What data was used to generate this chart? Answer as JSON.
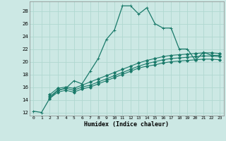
{
  "xlabel": "Humidex (Indice chaleur)",
  "bg_color": "#cce8e4",
  "grid_color": "#b0d8d0",
  "line_color": "#1a7a6a",
  "xlim": [
    -0.5,
    23.5
  ],
  "ylim": [
    11.5,
    29.5
  ],
  "xticks": [
    0,
    1,
    2,
    3,
    4,
    5,
    6,
    7,
    8,
    9,
    10,
    11,
    12,
    13,
    14,
    15,
    16,
    17,
    18,
    19,
    20,
    21,
    22,
    23
  ],
  "yticks": [
    12,
    14,
    16,
    18,
    20,
    22,
    24,
    26,
    28
  ],
  "series": [
    {
      "x": [
        0,
        1,
        2,
        3,
        4,
        5,
        6,
        7,
        8,
        9,
        10,
        11,
        12,
        13,
        14,
        15,
        16,
        17,
        18,
        19,
        20,
        21,
        22,
        23
      ],
      "y": [
        12.2,
        12.0,
        14.2,
        15.5,
        15.8,
        17.0,
        16.5,
        18.5,
        20.5,
        23.5,
        25.0,
        28.8,
        28.8,
        27.5,
        28.5,
        26.0,
        25.3,
        25.3,
        22.0,
        22.0,
        20.2,
        21.5,
        21.0,
        21.0
      ],
      "marker": "+",
      "ms": 3.5,
      "lw": 0.9
    },
    {
      "x": [
        2,
        3,
        4,
        5,
        6,
        7,
        8,
        9,
        10,
        11,
        12,
        13,
        14,
        15,
        16,
        17,
        18,
        19,
        20,
        21,
        22,
        23
      ],
      "y": [
        14.8,
        15.8,
        16.0,
        15.8,
        16.3,
        16.8,
        17.3,
        17.8,
        18.3,
        18.8,
        19.3,
        19.8,
        20.2,
        20.5,
        20.8,
        21.0,
        21.1,
        21.2,
        21.3,
        21.4,
        21.4,
        21.3
      ],
      "marker": "D",
      "ms": 2.0,
      "lw": 0.8
    },
    {
      "x": [
        2,
        3,
        4,
        5,
        6,
        7,
        8,
        9,
        10,
        11,
        12,
        13,
        14,
        15,
        16,
        17,
        18,
        19,
        20,
        21,
        22,
        23
      ],
      "y": [
        14.5,
        15.5,
        15.8,
        15.5,
        16.0,
        16.3,
        16.8,
        17.3,
        17.8,
        18.3,
        18.8,
        19.3,
        19.7,
        20.0,
        20.3,
        20.5,
        20.6,
        20.7,
        20.8,
        20.9,
        20.9,
        20.8
      ],
      "marker": "D",
      "ms": 2.0,
      "lw": 0.8
    },
    {
      "x": [
        2,
        3,
        4,
        5,
        6,
        7,
        8,
        9,
        10,
        11,
        12,
        13,
        14,
        15,
        16,
        17,
        18,
        19,
        20,
        21,
        22,
        23
      ],
      "y": [
        14.2,
        15.2,
        15.5,
        15.2,
        15.7,
        16.0,
        16.5,
        17.0,
        17.5,
        18.0,
        18.5,
        19.0,
        19.3,
        19.5,
        19.8,
        20.0,
        20.1,
        20.2,
        20.3,
        20.4,
        20.4,
        20.3
      ],
      "marker": "D",
      "ms": 2.0,
      "lw": 0.8
    }
  ]
}
